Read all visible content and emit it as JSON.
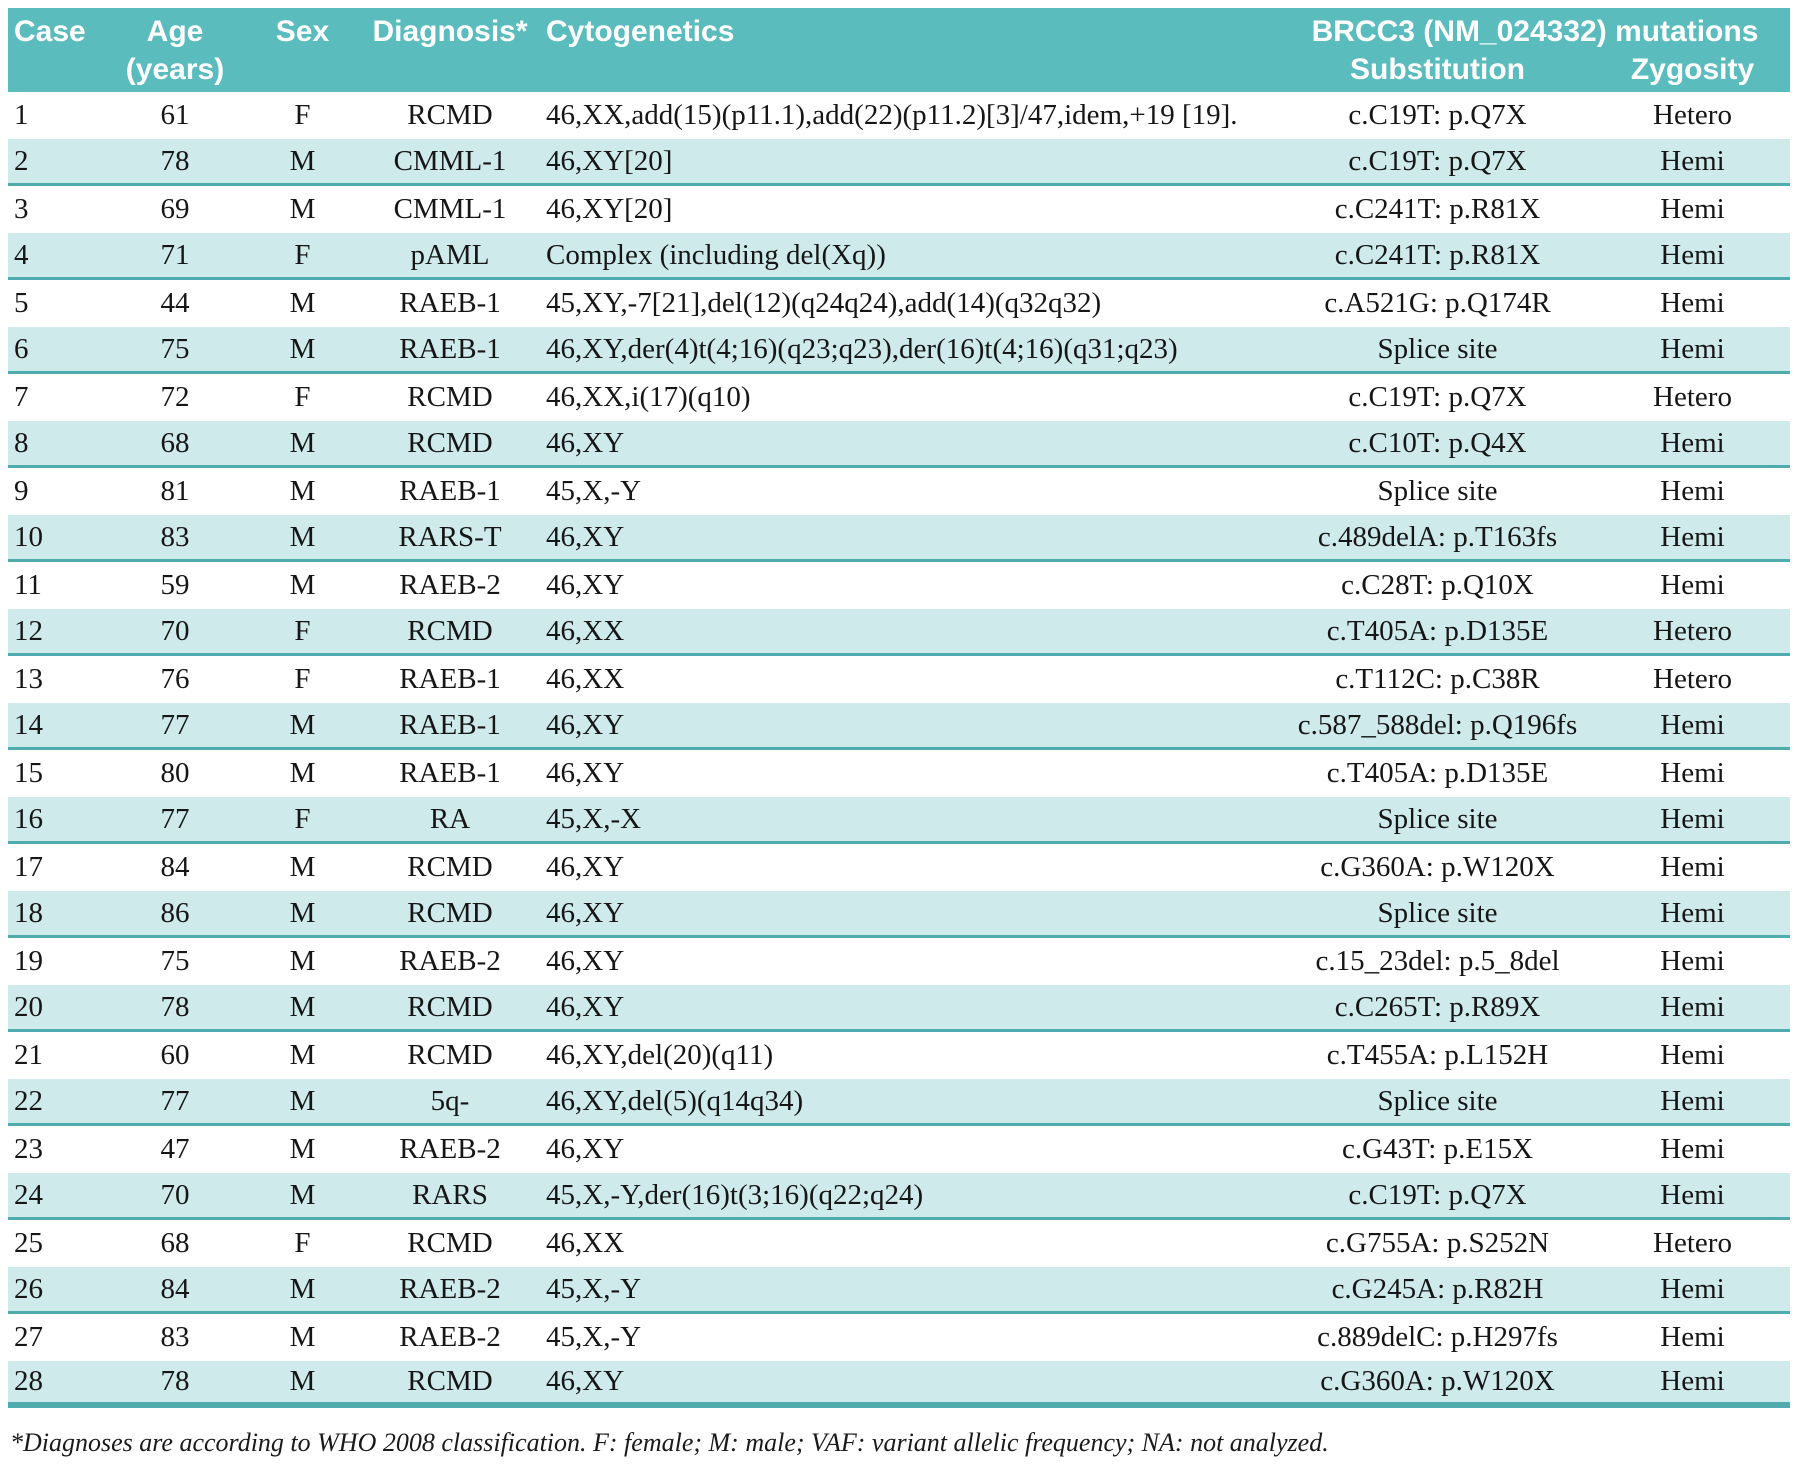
{
  "colors": {
    "header_bg": "#5bbcbe",
    "stripe_bg": "#cfeaea",
    "line": "#4fabad",
    "text": "#161616"
  },
  "table": {
    "headers": {
      "case": "Case",
      "age_line1": "Age",
      "age_line2": "(years)",
      "sex": "Sex",
      "diagnosis": "Diagnosis*",
      "cytogenetics": "Cytogenetics",
      "mutations_group": "BRCC3 (NM_024332) mutations",
      "substitution": "Substitution",
      "zygosity": "Zygosity"
    },
    "rows": [
      [
        "1",
        "61",
        "F",
        "RCMD",
        "46,XX,add(15)(p11.1),add(22)(p11.2)[3]/47,idem,+19 [19].",
        "c.C19T: p.Q7X",
        "Hetero"
      ],
      [
        "2",
        "78",
        "M",
        "CMML-1",
        "46,XY[20]",
        "c.C19T: p.Q7X",
        "Hemi"
      ],
      [
        "3",
        "69",
        "M",
        "CMML-1",
        "46,XY[20]",
        "c.C241T: p.R81X",
        "Hemi"
      ],
      [
        "4",
        "71",
        "F",
        "pAML",
        "Complex (including del(Xq))",
        "c.C241T: p.R81X",
        "Hemi"
      ],
      [
        "5",
        "44",
        "M",
        "RAEB-1",
        "45,XY,-7[21],del(12)(q24q24),add(14)(q32q32)",
        "c.A521G: p.Q174R",
        "Hemi"
      ],
      [
        "6",
        "75",
        "M",
        "RAEB-1",
        "46,XY,der(4)t(4;16)(q23;q23),der(16)t(4;16)(q31;q23)",
        "Splice site",
        "Hemi"
      ],
      [
        "7",
        "72",
        "F",
        "RCMD",
        "46,XX,i(17)(q10)",
        "c.C19T: p.Q7X",
        "Hetero"
      ],
      [
        "8",
        "68",
        "M",
        "RCMD",
        "46,XY",
        "c.C10T: p.Q4X",
        "Hemi"
      ],
      [
        "9",
        "81",
        "M",
        "RAEB-1",
        "45,X,-Y",
        "Splice site",
        "Hemi"
      ],
      [
        "10",
        "83",
        "M",
        "RARS-T",
        "46,XY",
        "c.489delA: p.T163fs",
        "Hemi"
      ],
      [
        "11",
        "59",
        "M",
        "RAEB-2",
        "46,XY",
        "c.C28T: p.Q10X",
        "Hemi"
      ],
      [
        "12",
        "70",
        "F",
        "RCMD",
        "46,XX",
        "c.T405A: p.D135E",
        "Hetero"
      ],
      [
        "13",
        "76",
        "F",
        "RAEB-1",
        "46,XX",
        "c.T112C: p.C38R",
        "Hetero"
      ],
      [
        "14",
        "77",
        "M",
        "RAEB-1",
        "46,XY",
        "c.587_588del: p.Q196fs",
        "Hemi"
      ],
      [
        "15",
        "80",
        "M",
        "RAEB-1",
        "46,XY",
        "c.T405A: p.D135E",
        "Hemi"
      ],
      [
        "16",
        "77",
        "F",
        "RA",
        "45,X,-X",
        "Splice site",
        "Hemi"
      ],
      [
        "17",
        "84",
        "M",
        "RCMD",
        "46,XY",
        "c.G360A: p.W120X",
        "Hemi"
      ],
      [
        "18",
        "86",
        "M",
        "RCMD",
        "46,XY",
        "Splice site",
        "Hemi"
      ],
      [
        "19",
        "75",
        "M",
        "RAEB-2",
        "46,XY",
        "c.15_23del: p.5_8del",
        "Hemi"
      ],
      [
        "20",
        "78",
        "M",
        "RCMD",
        "46,XY",
        "c.C265T: p.R89X",
        "Hemi"
      ],
      [
        "21",
        "60",
        "M",
        "RCMD",
        "46,XY,del(20)(q11)",
        "c.T455A: p.L152H",
        "Hemi"
      ],
      [
        "22",
        "77",
        "M",
        "5q-",
        "46,XY,del(5)(q14q34)",
        "Splice site",
        "Hemi"
      ],
      [
        "23",
        "47",
        "M",
        "RAEB-2",
        "46,XY",
        "c.G43T: p.E15X",
        "Hemi"
      ],
      [
        "24",
        "70",
        "M",
        "RARS",
        "45,X,-Y,der(16)t(3;16)(q22;q24)",
        "c.C19T: p.Q7X",
        "Hemi"
      ],
      [
        "25",
        "68",
        "F",
        "RCMD",
        "46,XX",
        "c.G755A: p.S252N",
        "Hetero"
      ],
      [
        "26",
        "84",
        "M",
        "RAEB-2",
        "45,X,-Y",
        "c.G245A: p.R82H",
        "Hemi"
      ],
      [
        "27",
        "83",
        "M",
        "RAEB-2",
        "45,X,-Y",
        "c.889delC: p.H297fs",
        "Hemi"
      ],
      [
        "28",
        "78",
        "M",
        "RCMD",
        "46,XY",
        "c.G360A: p.W120X",
        "Hemi"
      ]
    ],
    "footnote": "*Diagnoses are according to WHO 2008 classification. F: female; M: male; VAF: variant allelic frequency; NA: not analyzed."
  }
}
